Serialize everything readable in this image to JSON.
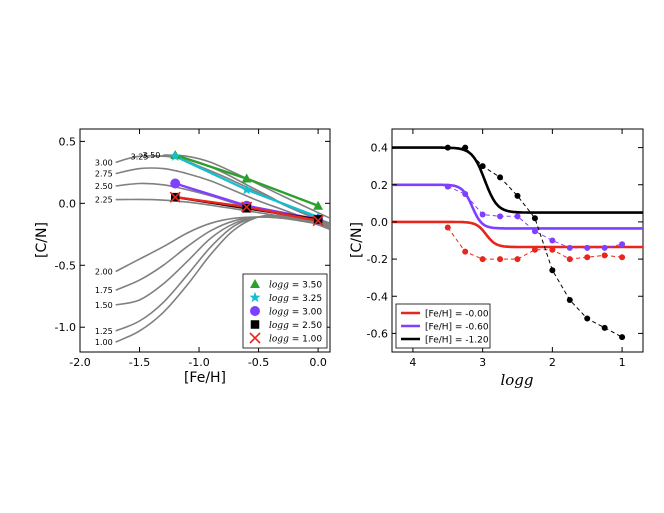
{
  "chart_data": [
    {
      "type": "line",
      "xlabel": "[Fe/H]",
      "ylabel": "[C/N]",
      "xlim": [
        -2.0,
        0.1
      ],
      "ylim": [
        -1.2,
        0.6
      ],
      "xticks": [
        "-2.0",
        "-1.5",
        "-1.0",
        "-0.5",
        "0.0"
      ],
      "yticks": [
        "0.5",
        "0.0",
        "-0.5",
        "-1.0"
      ],
      "model_curves": [
        {
          "label": "3.00",
          "x": [
            -1.7,
            -1.5,
            -1.2,
            -1.0,
            -0.8,
            -0.6,
            -0.4,
            -0.2,
            0.1
          ],
          "y": [
            0.33,
            0.38,
            0.37,
            0.3,
            0.22,
            0.13,
            0.04,
            -0.05,
            -0.16
          ]
        },
        {
          "label": "3.25",
          "x": [
            -1.4,
            -1.2,
            -1.0,
            -0.8,
            -0.6,
            -0.4,
            -0.2,
            0.1
          ],
          "y": [
            0.38,
            0.38,
            0.33,
            0.25,
            0.15,
            0.05,
            -0.05,
            -0.17
          ]
        },
        {
          "label": "3.50",
          "x": [
            -1.3,
            -1.1,
            -0.9,
            -0.6,
            -0.3,
            0.1
          ],
          "y": [
            0.39,
            0.38,
            0.33,
            0.2,
            0.06,
            -0.12
          ]
        },
        {
          "label": "2.75",
          "x": [
            -1.7,
            -1.5,
            -1.3,
            -1.1,
            -0.9,
            -0.7,
            -0.5,
            -0.3,
            -0.1,
            0.1
          ],
          "y": [
            0.24,
            0.28,
            0.28,
            0.24,
            0.18,
            0.1,
            0.02,
            -0.05,
            -0.12,
            -0.18
          ]
        },
        {
          "label": "2.50",
          "x": [
            -1.7,
            -1.5,
            -1.3,
            -1.1,
            -0.9,
            -0.7,
            -0.5,
            -0.3,
            -0.1,
            0.1
          ],
          "y": [
            0.14,
            0.16,
            0.15,
            0.11,
            0.06,
            0.0,
            -0.05,
            -0.09,
            -0.13,
            -0.17
          ]
        },
        {
          "label": "2.25",
          "x": [
            -1.7,
            -1.4,
            -1.1,
            -0.8,
            -0.6,
            -0.4,
            -0.2,
            0.0,
            0.1
          ],
          "y": [
            0.03,
            0.03,
            0.01,
            -0.03,
            -0.06,
            -0.09,
            -0.12,
            -0.15,
            -0.17
          ]
        },
        {
          "label": "2.00",
          "x": [
            -1.7,
            -1.5,
            -1.3,
            -1.1,
            -0.9,
            -0.7,
            -0.5,
            -0.3,
            -0.1,
            0.1
          ],
          "y": [
            -0.55,
            -0.45,
            -0.35,
            -0.24,
            -0.16,
            -0.12,
            -0.11,
            -0.12,
            -0.14,
            -0.17
          ]
        },
        {
          "label": "1.75",
          "x": [
            -1.7,
            -1.5,
            -1.3,
            -1.1,
            -0.9,
            -0.7,
            -0.5,
            -0.3,
            -0.1,
            0.1
          ],
          "y": [
            -0.7,
            -0.62,
            -0.5,
            -0.35,
            -0.22,
            -0.14,
            -0.11,
            -0.12,
            -0.15,
            -0.18
          ]
        },
        {
          "label": "1.50",
          "x": [
            -1.7,
            -1.5,
            -1.3,
            -1.1,
            -0.9,
            -0.7,
            -0.5,
            -0.3,
            -0.1,
            0.1
          ],
          "y": [
            -0.82,
            -0.78,
            -0.65,
            -0.47,
            -0.28,
            -0.16,
            -0.11,
            -0.11,
            -0.14,
            -0.19
          ]
        },
        {
          "label": "1.25",
          "x": [
            -1.7,
            -1.5,
            -1.3,
            -1.1,
            -0.9,
            -0.7,
            -0.5,
            -0.3,
            -0.1,
            0.1
          ],
          "y": [
            -1.03,
            -0.95,
            -0.8,
            -0.58,
            -0.35,
            -0.18,
            -0.11,
            -0.1,
            -0.14,
            -0.2
          ]
        },
        {
          "label": "1.00",
          "x": [
            -1.7,
            -1.5,
            -1.3,
            -1.1,
            -0.9,
            -0.7,
            -0.5,
            -0.3,
            -0.1,
            0.1
          ],
          "y": [
            -1.12,
            -1.03,
            -0.88,
            -0.66,
            -0.41,
            -0.21,
            -0.11,
            -0.1,
            -0.14,
            -0.21
          ]
        }
      ],
      "series": [
        {
          "name": "logg = 3.50",
          "color": "#2ca02c",
          "marker": "triangle",
          "x": [
            -1.2,
            -0.6,
            0.0
          ],
          "y": [
            0.39,
            0.2,
            -0.02
          ]
        },
        {
          "name": "logg = 3.25",
          "color": "#17becf",
          "marker": "star",
          "x": [
            -1.2,
            -0.6,
            0.0
          ],
          "y": [
            0.38,
            0.11,
            -0.11
          ]
        },
        {
          "name": "logg = 3.00",
          "color": "#7f3fff",
          "marker": "circle",
          "x": [
            -1.2,
            -0.6,
            0.0
          ],
          "y": [
            0.16,
            -0.02,
            -0.13
          ]
        },
        {
          "name": "logg = 2.50",
          "color": "#000000",
          "marker": "square",
          "x": [
            -1.2,
            -0.6,
            0.0
          ],
          "y": [
            0.05,
            -0.04,
            -0.13
          ]
        },
        {
          "name": "logg = 1.00",
          "color": "#e8261c",
          "marker": "x",
          "x": [
            -1.2,
            -0.6,
            0.0
          ],
          "y": [
            0.05,
            -0.03,
            -0.14
          ]
        }
      ],
      "legend": {
        "placement": "lower-right",
        "prefix": "log",
        "italic": "g",
        "entries": [
          " = 3.50",
          " = 3.25",
          " = 3.00",
          " = 2.50",
          " = 1.00"
        ]
      }
    },
    {
      "type": "line",
      "xlabel": "logg",
      "ylabel": "[C/N]",
      "xlim": [
        4.3,
        0.7
      ],
      "ylim": [
        -0.7,
        0.5
      ],
      "xticks": [
        "4",
        "3",
        "2",
        "1"
      ],
      "yticks": [
        "0.4",
        "0.2",
        "0.0",
        "-0.2",
        "-0.4",
        "-0.6"
      ],
      "series": [
        {
          "name": "[Fe/H] = -0.00",
          "color": "#e8261c",
          "curve": {
            "high": 0.0,
            "low": -0.135,
            "center": 2.95,
            "width": 0.07
          },
          "points": {
            "x": [
              3.5,
              3.25,
              3.0,
              2.75,
              2.5,
              2.25,
              2.0,
              1.75,
              1.5,
              1.25,
              1.0
            ],
            "y": [
              -0.03,
              -0.16,
              -0.2,
              -0.2,
              -0.2,
              -0.15,
              -0.15,
              -0.2,
              -0.19,
              -0.18,
              -0.19
            ]
          }
        },
        {
          "name": "[Fe/H] = -0.60",
          "color": "#7f3fff",
          "curve": {
            "high": 0.2,
            "low": -0.035,
            "center": 3.15,
            "width": 0.07
          },
          "points": {
            "x": [
              3.5,
              3.25,
              3.0,
              2.75,
              2.5,
              2.25,
              2.0,
              1.75,
              1.5,
              1.25,
              1.0
            ],
            "y": [
              0.19,
              0.15,
              0.04,
              0.03,
              0.03,
              -0.05,
              -0.1,
              -0.14,
              -0.14,
              -0.14,
              -0.12
            ]
          }
        },
        {
          "name": "[Fe/H] = -1.20",
          "color": "#000000",
          "curve": {
            "high": 0.4,
            "low": 0.05,
            "center": 2.97,
            "width": 0.09
          },
          "points": {
            "x": [
              3.5,
              3.25,
              3.0,
              2.75,
              2.5,
              2.25,
              2.0,
              1.75,
              1.5,
              1.25,
              1.0
            ],
            "y": [
              0.4,
              0.4,
              0.3,
              0.24,
              0.14,
              0.02,
              -0.26,
              -0.42,
              -0.52,
              -0.57,
              -0.62
            ]
          }
        }
      ],
      "legend": {
        "placement": "lower-left",
        "entries": [
          "[Fe/H] = -0.00",
          "[Fe/H] = -0.60",
          "[Fe/H] = -1.20"
        ]
      }
    }
  ]
}
